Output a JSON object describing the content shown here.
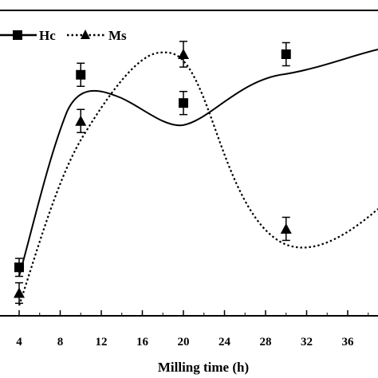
{
  "chart_data": {
    "type": "line",
    "title": "",
    "xlabel": "Milling time (h)",
    "ylabel": "",
    "xlim": [
      3,
      40
    ],
    "ylim": [
      0,
      1
    ],
    "x_ticks": [
      4,
      8,
      12,
      16,
      20,
      24,
      28,
      32,
      36
    ],
    "grid": false,
    "legend_position": "top-left",
    "series": [
      {
        "name": "Hc",
        "marker": "square",
        "line_style": "solid",
        "color": "#000000",
        "x": [
          4,
          10,
          20,
          30
        ],
        "y": [
          0.17,
          0.92,
          0.81,
          1.0
        ],
        "error": [
          0.035,
          0.045,
          0.045,
          0.045
        ]
      },
      {
        "name": "Ms",
        "marker": "triangle",
        "line_style": "dotted",
        "color": "#000000",
        "x": [
          4,
          10,
          20,
          30
        ],
        "y": [
          0.07,
          0.74,
          1.0,
          0.32
        ],
        "error": [
          0.04,
          0.045,
          0.05,
          0.045
        ]
      }
    ]
  }
}
